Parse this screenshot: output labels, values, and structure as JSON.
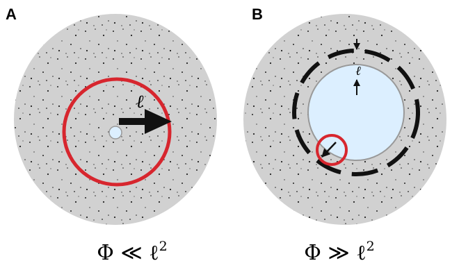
{
  "panels": [
    {
      "label": "A",
      "length_label": "ℓ",
      "caption": {
        "text": "Φ ≪ ℓ",
        "superscript": "2"
      }
    },
    {
      "label": "B",
      "length_label": "ℓ",
      "caption": {
        "text": "Φ ≫ ℓ",
        "superscript": "2"
      }
    }
  ]
}
